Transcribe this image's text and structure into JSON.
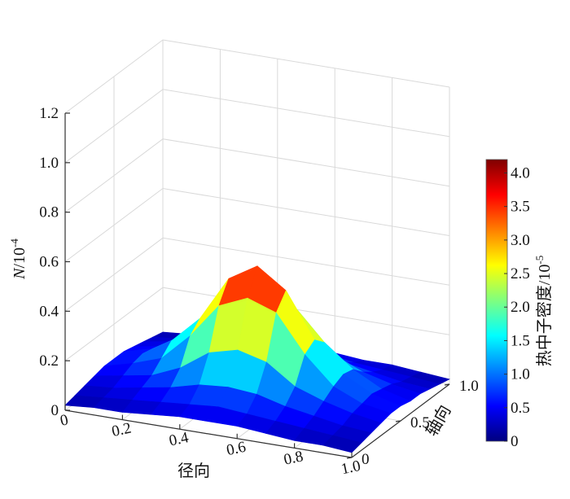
{
  "chart_data": {
    "type": "surface",
    "title": "",
    "xlabel": "径向",
    "ylabel": "轴向",
    "zlabel_main": "N",
    "zlabel_unit": "/10",
    "zlabel_exp": "-4",
    "x_ticks": [
      "0",
      "0.2",
      "0.4",
      "0.6",
      "0.8",
      "1.0"
    ],
    "y_ticks": [
      "0",
      "0.5",
      "1.0"
    ],
    "z_ticks": [
      "0",
      "0.2",
      "0.4",
      "0.6",
      "0.8",
      "1.0",
      "1.2"
    ],
    "xlim": [
      0,
      1.0
    ],
    "ylim": [
      0,
      1.0
    ],
    "zlim": [
      0,
      1.2
    ],
    "colorbar": {
      "label_main": "热中子密度",
      "label_unit": "/10",
      "label_exp": "-5",
      "ticks": [
        "0",
        "0.5",
        "1.0",
        "1.5",
        "2.0",
        "2.5",
        "3.0",
        "3.5",
        "4.0"
      ],
      "range": [
        0,
        4.2
      ],
      "colormap": [
        "#00007f",
        "#0000ff",
        "#007fff",
        "#00ffff",
        "#7fff7f",
        "#ffff00",
        "#ff7f00",
        "#ff0000",
        "#7f0000"
      ]
    },
    "surface": {
      "grid_x": [
        0,
        0.1,
        0.2,
        0.3,
        0.4,
        0.5,
        0.6,
        0.7,
        0.8,
        0.9,
        1.0
      ],
      "grid_y": [
        0,
        0.1,
        0.2,
        0.3,
        0.4,
        0.5,
        0.6,
        0.7,
        0.8,
        0.9,
        1.0
      ],
      "z": [
        [
          0.02,
          0.03,
          0.03,
          0.04,
          0.05,
          0.05,
          0.05,
          0.04,
          0.03,
          0.03,
          0.02
        ],
        [
          0.03,
          0.04,
          0.05,
          0.06,
          0.07,
          0.08,
          0.07,
          0.06,
          0.05,
          0.04,
          0.03
        ],
        [
          0.04,
          0.05,
          0.07,
          0.09,
          0.12,
          0.13,
          0.12,
          0.09,
          0.07,
          0.05,
          0.04
        ],
        [
          0.05,
          0.07,
          0.09,
          0.14,
          0.22,
          0.25,
          0.22,
          0.14,
          0.1,
          0.07,
          0.05
        ],
        [
          0.06,
          0.09,
          0.13,
          0.24,
          0.38,
          0.43,
          0.39,
          0.24,
          0.13,
          0.08,
          0.06
        ],
        [
          0.06,
          0.1,
          0.17,
          0.28,
          0.46,
          0.53,
          0.45,
          0.27,
          0.15,
          0.09,
          0.06
        ],
        [
          0.06,
          0.09,
          0.16,
          0.25,
          0.36,
          0.42,
          0.35,
          0.23,
          0.14,
          0.08,
          0.05
        ],
        [
          0.05,
          0.07,
          0.11,
          0.17,
          0.22,
          0.24,
          0.21,
          0.15,
          0.1,
          0.07,
          0.05
        ],
        [
          0.04,
          0.06,
          0.08,
          0.1,
          0.12,
          0.13,
          0.12,
          0.09,
          0.07,
          0.05,
          0.04
        ],
        [
          0.03,
          0.04,
          0.05,
          0.07,
          0.08,
          0.09,
          0.08,
          0.06,
          0.05,
          0.04,
          0.03
        ],
        [
          0.02,
          0.03,
          0.04,
          0.05,
          0.05,
          0.06,
          0.05,
          0.04,
          0.04,
          0.03,
          0.02
        ]
      ]
    }
  }
}
